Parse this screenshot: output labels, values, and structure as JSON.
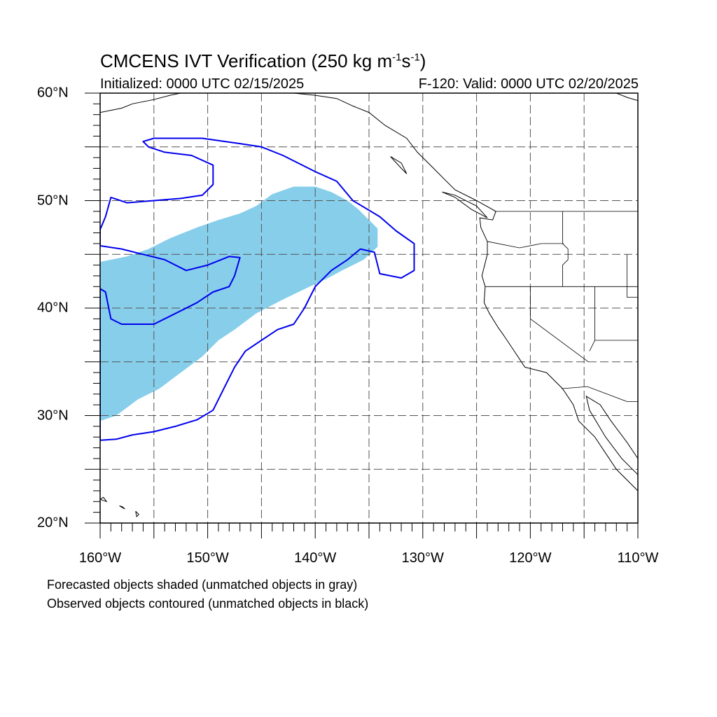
{
  "header": {
    "title_main": "CMCENS IVT Verification (250 kg m",
    "title_exp1": "-1",
    "title_mid": "s",
    "title_exp2": "-1",
    "title_end": ")",
    "initialized": "Initialized: 0000 UTC 02/15/2025",
    "valid": "F-120: Valid: 0000 UTC 02/20/2025"
  },
  "map": {
    "lon_range": [
      -160,
      -110
    ],
    "lat_range": [
      20,
      60
    ],
    "lon_labels": [
      {
        "lon": -160,
        "text": "160°W"
      },
      {
        "lon": -150,
        "text": "150°W"
      },
      {
        "lon": -140,
        "text": "140°W"
      },
      {
        "lon": -130,
        "text": "130°W"
      },
      {
        "lon": -120,
        "text": "120°W"
      },
      {
        "lon": -110,
        "text": "110°W"
      }
    ],
    "lat_labels": [
      {
        "lat": 60,
        "text": "60°N"
      },
      {
        "lat": 50,
        "text": "50°N"
      },
      {
        "lat": 40,
        "text": "40°N"
      },
      {
        "lat": 30,
        "text": "30°N"
      },
      {
        "lat": 20,
        "text": "20°N"
      }
    ],
    "gridlines": "dashed every 5 degrees",
    "colors": {
      "forecast_fill": "#87ceeb",
      "observed_contour": "#0000ee",
      "coastline": "#000000",
      "grid": "#555555"
    },
    "forecast_object": {
      "name": "forecasted IVT object (matched)",
      "polygon_lonlat": [
        [
          -160,
          29.5
        ],
        [
          -158.5,
          30
        ],
        [
          -156.5,
          31.5
        ],
        [
          -154.5,
          32.5
        ],
        [
          -152.5,
          34
        ],
        [
          -150.5,
          35.5
        ],
        [
          -149,
          37
        ],
        [
          -147.5,
          38
        ],
        [
          -145.5,
          39.5
        ],
        [
          -143,
          40.8
        ],
        [
          -140.5,
          42
        ],
        [
          -139,
          42.7
        ],
        [
          -137.5,
          43.5
        ],
        [
          -135.5,
          44.5
        ],
        [
          -134.2,
          45.7
        ],
        [
          -134.2,
          47.4
        ],
        [
          -135,
          48.2
        ],
        [
          -136,
          49.2
        ],
        [
          -137,
          50
        ],
        [
          -138.5,
          50.8
        ],
        [
          -140,
          51.3
        ],
        [
          -142,
          51.3
        ],
        [
          -144,
          50.6
        ],
        [
          -145.5,
          49.5
        ],
        [
          -147,
          48.8
        ],
        [
          -149,
          48.2
        ],
        [
          -151,
          47.5
        ],
        [
          -153.5,
          46.5
        ],
        [
          -155.5,
          45.5
        ],
        [
          -157.5,
          44.8
        ],
        [
          -160,
          44.3
        ]
      ]
    },
    "observed_object": {
      "name": "observed IVT object contour (matched)",
      "polygon_lonlat": [
        [
          -160,
          27.7
        ],
        [
          -158.5,
          27.8
        ],
        [
          -157,
          28.2
        ],
        [
          -155,
          28.5
        ],
        [
          -153,
          29
        ],
        [
          -151,
          29.6
        ],
        [
          -149.5,
          30.5
        ],
        [
          -148.5,
          32.5
        ],
        [
          -147.5,
          34.5
        ],
        [
          -146.5,
          36
        ],
        [
          -145,
          37
        ],
        [
          -143.5,
          38
        ],
        [
          -142,
          38.5
        ],
        [
          -141,
          40
        ],
        [
          -140,
          42
        ],
        [
          -138.5,
          43.5
        ],
        [
          -137,
          44.5
        ],
        [
          -135.8,
          45.5
        ],
        [
          -134.5,
          45.2
        ],
        [
          -134,
          43.2
        ],
        [
          -132,
          42.8
        ],
        [
          -130.8,
          43.5
        ],
        [
          -130.8,
          46
        ],
        [
          -132.5,
          47.2
        ],
        [
          -134,
          48.5
        ],
        [
          -136.5,
          50
        ],
        [
          -138,
          51.8
        ],
        [
          -140,
          52.7
        ],
        [
          -143,
          54.2
        ],
        [
          -145,
          55
        ],
        [
          -147,
          55.3
        ],
        [
          -150.5,
          55.8
        ],
        [
          -155,
          55.8
        ],
        [
          -156,
          55.5
        ],
        [
          -155.5,
          55
        ],
        [
          -154,
          54.5
        ],
        [
          -151.5,
          54.2
        ],
        [
          -149.5,
          53.3
        ],
        [
          -149.5,
          51.5
        ],
        [
          -150.5,
          50.5
        ],
        [
          -152.5,
          50.2
        ],
        [
          -155,
          50
        ],
        [
          -157.5,
          49.8
        ],
        [
          -159,
          50.3
        ],
        [
          -159.5,
          48.5
        ],
        [
          -160,
          47.3
        ],
        [
          -160,
          45.8
        ],
        [
          -158,
          45.5
        ],
        [
          -156,
          45
        ],
        [
          -154,
          44.5
        ],
        [
          -152,
          43.5
        ],
        [
          -150,
          44
        ],
        [
          -148,
          44.8
        ],
        [
          -147,
          44.7
        ],
        [
          -147.5,
          43
        ],
        [
          -148,
          42
        ],
        [
          -149.5,
          41.5
        ],
        [
          -151,
          40.5
        ],
        [
          -153,
          39.5
        ],
        [
          -155,
          38.5
        ],
        [
          -158,
          38.5
        ],
        [
          -159,
          39
        ],
        [
          -159.5,
          41.5
        ],
        [
          -160,
          41.8
        ]
      ]
    },
    "coastlines": [
      [
        [
          -117,
          32.5
        ],
        [
          -118.5,
          34
        ],
        [
          -120.5,
          34.5
        ],
        [
          -121.5,
          36
        ],
        [
          -122.5,
          37.5
        ],
        [
          -123,
          38.2
        ],
        [
          -123.8,
          39.5
        ],
        [
          -124.3,
          40.5
        ],
        [
          -124.2,
          42
        ],
        [
          -124.5,
          43
        ],
        [
          -124,
          45
        ],
        [
          -124,
          46.2
        ],
        [
          -124.6,
          47.5
        ],
        [
          -124.7,
          48.4
        ],
        [
          -123.5,
          48.2
        ],
        [
          -123.2,
          49
        ],
        [
          -125,
          50
        ],
        [
          -127,
          51
        ],
        [
          -128,
          52
        ],
        [
          -129,
          53
        ],
        [
          -130.5,
          54.5
        ],
        [
          -131.5,
          55.8
        ],
        [
          -133.5,
          57
        ],
        [
          -135,
          58.2
        ],
        [
          -136.5,
          58.8
        ],
        [
          -138,
          59.5
        ],
        [
          -140,
          59.8
        ],
        [
          -142,
          60
        ]
      ],
      [
        [
          -117,
          32.5
        ],
        [
          -116,
          31
        ],
        [
          -115.5,
          29.5
        ],
        [
          -114,
          28
        ],
        [
          -113,
          26.5
        ],
        [
          -112,
          25
        ],
        [
          -110,
          23
        ]
      ],
      [
        [
          -110,
          26
        ],
        [
          -111,
          27.5
        ],
        [
          -112.5,
          29.5
        ],
        [
          -113.5,
          31
        ],
        [
          -114.8,
          31.8
        ],
        [
          -114.5,
          30.5
        ],
        [
          -113,
          28
        ],
        [
          -111.5,
          26
        ],
        [
          -110,
          24.5
        ]
      ],
      [
        [
          -160,
          58.2
        ],
        [
          -158,
          58.6
        ],
        [
          -157,
          59
        ],
        [
          -155,
          59.4
        ],
        [
          -153.5,
          59.8
        ],
        [
          -152.5,
          60
        ]
      ],
      [
        [
          -110,
          59.3
        ],
        [
          -111,
          59.6
        ],
        [
          -112,
          60
        ]
      ],
      [
        [
          -128.2,
          50.8
        ],
        [
          -127,
          50.3
        ],
        [
          -125.5,
          49.2
        ],
        [
          -124,
          48.4
        ],
        [
          -125,
          49.5
        ],
        [
          -127,
          50.5
        ],
        [
          -128.2,
          50.8
        ]
      ],
      [
        [
          -133,
          54.1
        ],
        [
          -132,
          53.5
        ],
        [
          -131.5,
          52.5
        ],
        [
          -132,
          53
        ],
        [
          -133,
          54.1
        ]
      ],
      [
        [
          -160,
          22.2
        ],
        [
          -159.4,
          22
        ],
        [
          -159.7,
          22.4
        ],
        [
          -160,
          22.2
        ]
      ],
      [
        [
          -158.2,
          21.6
        ],
        [
          -157.7,
          21.3
        ],
        [
          -157.9,
          21.5
        ],
        [
          -158.2,
          21.6
        ]
      ],
      [
        [
          -156.7,
          21.1
        ],
        [
          -156.4,
          20.8
        ],
        [
          -156.6,
          20.6
        ],
        [
          -156.7,
          21.1
        ]
      ]
    ],
    "borders": [
      [
        [
          -123.3,
          49
        ],
        [
          -110,
          49
        ]
      ],
      [
        [
          -124,
          46.2
        ],
        [
          -121,
          45.6
        ],
        [
          -119,
          46
        ],
        [
          -116.9,
          46
        ]
      ],
      [
        [
          -124.2,
          42
        ],
        [
          -110,
          42
        ]
      ],
      [
        [
          -120,
          42
        ],
        [
          -120,
          39
        ],
        [
          -114.6,
          35
        ]
      ],
      [
        [
          -117,
          49
        ],
        [
          -117,
          46
        ],
        [
          -116.5,
          45.5
        ],
        [
          -116.5,
          44.5
        ],
        [
          -117,
          44
        ],
        [
          -117,
          42
        ]
      ],
      [
        [
          -114,
          42
        ],
        [
          -114,
          37
        ],
        [
          -114.5,
          36
        ]
      ],
      [
        [
          -111,
          45
        ],
        [
          -111,
          41
        ],
        [
          -110,
          41
        ]
      ],
      [
        [
          -117.1,
          32.5
        ],
        [
          -114.7,
          32.7
        ],
        [
          -111,
          31.3
        ],
        [
          -110,
          31.3
        ]
      ],
      [
        [
          -114,
          37
        ],
        [
          -110,
          37
        ]
      ]
    ]
  },
  "notes": {
    "line1": "Forecasted objects shaded (unmatched objects in gray)",
    "line2": "Observed objects contoured (unmatched objects in black)"
  }
}
